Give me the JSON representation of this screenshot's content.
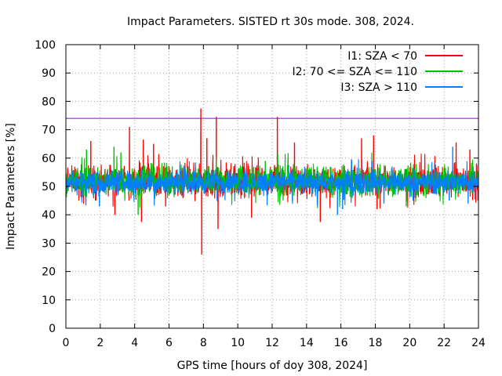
{
  "chart_data": {
    "type": "line",
    "title": "Impact Parameters. SISTED rt 30s mode. 308, 2024.",
    "xlabel": "GPS time [hours of doy 308, 2024]",
    "ylabel": "Impact Parameters [%]",
    "xlim": [
      0,
      24
    ],
    "ylim": [
      0,
      100
    ],
    "xticks": [
      "0",
      "2",
      "4",
      "6",
      "8",
      "10",
      "12",
      "14",
      "16",
      "18",
      "20",
      "22",
      "24"
    ],
    "yticks": [
      "0",
      "10",
      "20",
      "30",
      "40",
      "50",
      "60",
      "70",
      "80",
      "90",
      "100"
    ],
    "grid": true,
    "legend_position": "top-right",
    "reference_line": {
      "value": 74,
      "color": "#9400d3"
    },
    "series": [
      {
        "name": "I1: SZA < 70",
        "color": "#ff0000",
        "base_range": [
          45,
          59
        ],
        "spikes": [
          {
            "x": 1.45,
            "y": 66
          },
          {
            "x": 2.85,
            "y": 40
          },
          {
            "x": 3.7,
            "y": 71
          },
          {
            "x": 4.4,
            "y": 37.5
          },
          {
            "x": 4.5,
            "y": 66.5
          },
          {
            "x": 5.1,
            "y": 65
          },
          {
            "x": 5.8,
            "y": 43
          },
          {
            "x": 7.85,
            "y": 77.5
          },
          {
            "x": 7.9,
            "y": 26
          },
          {
            "x": 8.2,
            "y": 67
          },
          {
            "x": 8.75,
            "y": 74.5
          },
          {
            "x": 8.85,
            "y": 35
          },
          {
            "x": 10.8,
            "y": 39
          },
          {
            "x": 12.3,
            "y": 74.5
          },
          {
            "x": 13.3,
            "y": 65.5
          },
          {
            "x": 14.8,
            "y": 37.5
          },
          {
            "x": 17.2,
            "y": 67
          },
          {
            "x": 17.9,
            "y": 68
          },
          {
            "x": 18.1,
            "y": 42
          },
          {
            "x": 22.7,
            "y": 65.5
          },
          {
            "x": 23.5,
            "y": 63
          }
        ]
      },
      {
        "name": "I2: 70 <= SZA <= 110",
        "color": "#00c000",
        "base_range": [
          45,
          59
        ],
        "spikes": [
          {
            "x": 1.2,
            "y": 63
          },
          {
            "x": 2.8,
            "y": 64
          },
          {
            "x": 3.2,
            "y": 62
          },
          {
            "x": 4.2,
            "y": 40
          },
          {
            "x": 11.6,
            "y": 59
          },
          {
            "x": 19.8,
            "y": 43
          }
        ]
      },
      {
        "name": "I3: SZA > 110",
        "color": "#0080ff",
        "base_range": [
          46,
          57
        ],
        "spikes": [
          {
            "x": 1.95,
            "y": 43
          },
          {
            "x": 15.8,
            "y": 40
          },
          {
            "x": 16.1,
            "y": 42
          },
          {
            "x": 18.5,
            "y": 44
          },
          {
            "x": 22.3,
            "y": 45
          },
          {
            "x": 23.4,
            "y": 44
          },
          {
            "x": 22.5,
            "y": 64
          }
        ]
      }
    ]
  }
}
